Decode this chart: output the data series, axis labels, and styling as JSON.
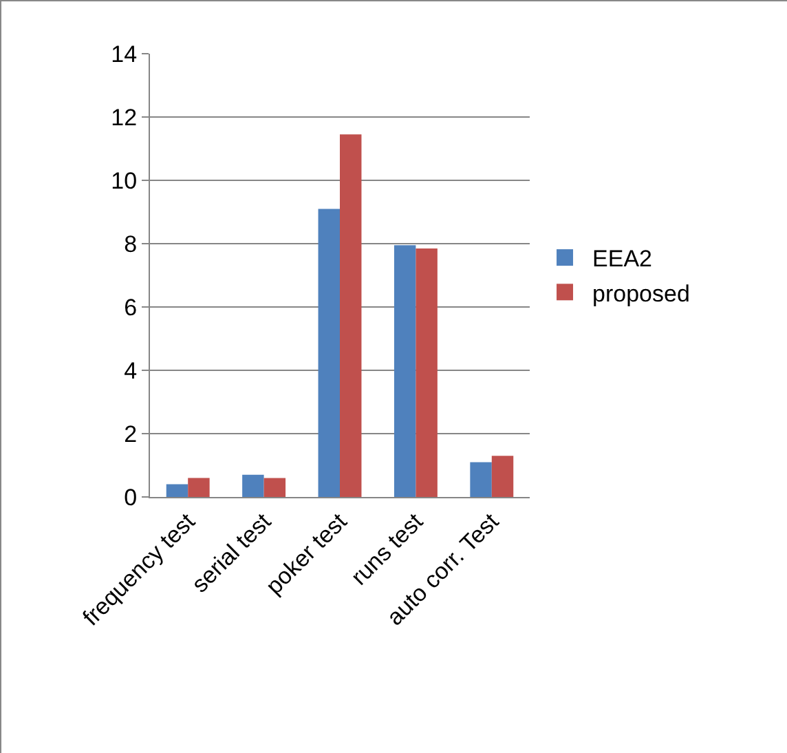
{
  "chart_data": {
    "type": "bar",
    "categories": [
      "frequency test",
      "serial test",
      "poker test",
      "runs test",
      "auto corr. Test"
    ],
    "series": [
      {
        "name": "EEA2",
        "color": "#4f81bd",
        "values": [
          0.4,
          0.7,
          9.1,
          7.95,
          1.1
        ]
      },
      {
        "name": "proposed",
        "color": "#c0504d",
        "values": [
          0.6,
          0.6,
          11.45,
          7.85,
          1.3
        ]
      }
    ],
    "ylim": [
      0,
      14
    ],
    "yticks": [
      0,
      2,
      4,
      6,
      8,
      10,
      12,
      14
    ],
    "grid": "y",
    "legend": "right"
  }
}
